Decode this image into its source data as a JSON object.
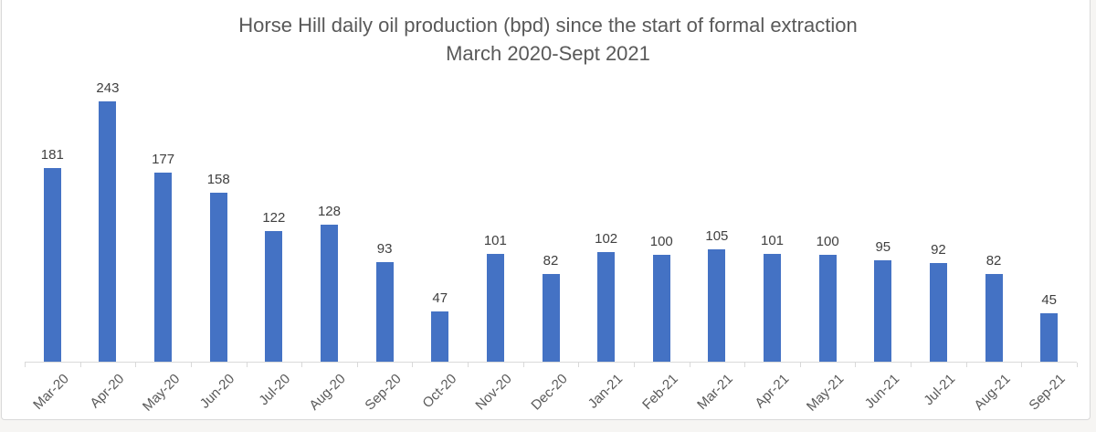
{
  "chart": {
    "title": "Horse Hill daily oil production (bpd) since the start of formal extraction",
    "subtitle": "March 2020-Sept 2021"
  },
  "chart_data": {
    "type": "bar",
    "title": "Horse Hill daily oil production (bpd) since the start of formal extraction",
    "subtitle": "March 2020-Sept 2021",
    "categories": [
      "Mar-20",
      "Apr-20",
      "May-20",
      "Jun-20",
      "Jul-20",
      "Aug-20",
      "Sep-20",
      "Oct-20",
      "Nov-20",
      "Dec-20",
      "Jan-21",
      "Feb-21",
      "Mar-21",
      "Apr-21",
      "May-21",
      "Jun-21",
      "Jul-21",
      "Aug-21",
      "Sep-21"
    ],
    "values": [
      181,
      243,
      177,
      158,
      122,
      128,
      93,
      47,
      101,
      82,
      102,
      100,
      105,
      101,
      100,
      95,
      92,
      82,
      45
    ],
    "xlabel": "",
    "ylabel": "",
    "ylim": [
      0,
      250
    ],
    "grid": false,
    "legend": false,
    "data_labels": true,
    "x_label_rotation_deg": 45,
    "colors": {
      "bar": "#4472C4",
      "title_text": "#595959",
      "data_label_text": "#404040",
      "axis_label_text": "#595959",
      "axis_line": "#D9D9D9",
      "chart_border": "#D9D9D9",
      "plot_background": "#FFFFFF",
      "outside_background": "#F6F5F3"
    }
  }
}
